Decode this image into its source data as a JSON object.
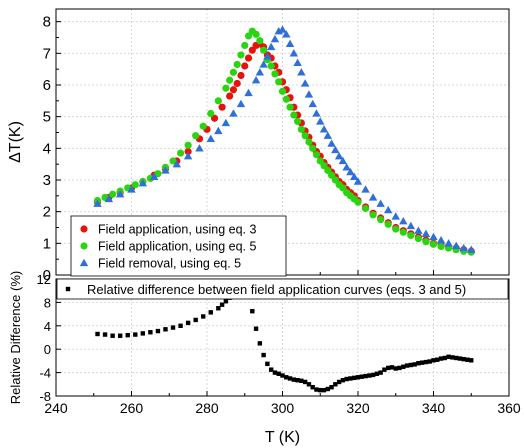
{
  "chart_data": [
    {
      "type": "scatter",
      "title": "",
      "xlabel": "T (K)",
      "ylabel": "ΔT(K)",
      "xlim": [
        240,
        360
      ],
      "ylim": [
        0,
        8.4
      ],
      "yticks": [
        "0",
        "1",
        "2",
        "3",
        "4",
        "5",
        "6",
        "7",
        "8"
      ],
      "grid": true,
      "legend_position": "bottom-left",
      "legend": [
        {
          "label": "Field application, using eq. 3",
          "color": "#e8120d",
          "marker": "circle"
        },
        {
          "label": "Field application, using eq. 5",
          "color": "#2bd411",
          "marker": "circle"
        },
        {
          "label": "Field removal, using eq. 5",
          "color": "#2e6fd8",
          "marker": "triangle"
        }
      ],
      "series": [
        {
          "name": "Field application, using eq. 3",
          "color": "#e8120d",
          "marker": "circle",
          "x": [
            251,
            254,
            257,
            260,
            263,
            266,
            269,
            272,
            275,
            278,
            280,
            282,
            284,
            286,
            287,
            288,
            289,
            290,
            291,
            292,
            293,
            294,
            295,
            296,
            297,
            298,
            299,
            300,
            301,
            302,
            303,
            304,
            305,
            306,
            307,
            308,
            309,
            310,
            311,
            312,
            313,
            314,
            315,
            316,
            317,
            318,
            319,
            320,
            322,
            324,
            326,
            328,
            330,
            332,
            334,
            336,
            338,
            340,
            342,
            344,
            346,
            348,
            350
          ],
          "y": [
            2.3,
            2.45,
            2.6,
            2.75,
            2.95,
            3.15,
            3.35,
            3.6,
            3.9,
            4.3,
            4.6,
            4.95,
            5.3,
            5.65,
            5.85,
            6.05,
            6.3,
            6.6,
            6.85,
            7.1,
            7.25,
            7.3,
            7.2,
            6.95,
            6.85,
            6.6,
            6.4,
            6.1,
            5.85,
            5.6,
            5.3,
            5.05,
            4.8,
            4.55,
            4.35,
            4.1,
            3.9,
            3.75,
            3.55,
            3.4,
            3.25,
            3.1,
            2.95,
            2.85,
            2.7,
            2.6,
            2.5,
            2.35,
            2.15,
            1.95,
            1.8,
            1.65,
            1.5,
            1.4,
            1.3,
            1.2,
            1.1,
            1.0,
            0.95,
            0.9,
            0.85,
            0.8,
            0.75
          ]
        },
        {
          "name": "Field application, using eq. 5",
          "color": "#2bd411",
          "marker": "circle",
          "x": [
            251,
            253,
            255,
            257,
            259,
            261,
            263,
            265,
            267,
            269,
            271,
            273,
            275,
            277,
            279,
            281,
            283,
            285,
            286,
            287,
            288,
            289,
            290,
            291,
            292,
            293,
            294,
            295,
            296,
            297,
            298,
            299,
            300,
            301,
            302,
            303,
            304,
            305,
            306,
            307,
            308,
            309,
            310,
            311,
            312,
            313,
            314,
            315,
            316,
            317,
            318,
            319,
            320,
            322,
            324,
            326,
            328,
            330,
            332,
            334,
            336,
            338,
            340,
            342,
            344,
            346,
            348,
            350
          ],
          "y": [
            2.35,
            2.45,
            2.55,
            2.65,
            2.75,
            2.85,
            2.95,
            3.05,
            3.2,
            3.4,
            3.6,
            3.85,
            4.1,
            4.4,
            4.7,
            5.1,
            5.5,
            5.9,
            6.15,
            6.4,
            6.65,
            6.95,
            7.25,
            7.55,
            7.7,
            7.6,
            7.4,
            7.1,
            6.8,
            6.6,
            6.35,
            6.1,
            5.8,
            5.55,
            5.3,
            5.05,
            4.85,
            4.6,
            4.4,
            4.2,
            4.0,
            3.8,
            3.6,
            3.45,
            3.3,
            3.15,
            3.0,
            2.85,
            2.75,
            2.6,
            2.5,
            2.4,
            2.3,
            2.1,
            1.9,
            1.75,
            1.6,
            1.45,
            1.35,
            1.25,
            1.15,
            1.05,
            0.97,
            0.9,
            0.85,
            0.8,
            0.75,
            0.72
          ]
        },
        {
          "name": "Field removal, using eq. 5",
          "color": "#2e6fd8",
          "marker": "triangle",
          "x": [
            251,
            254,
            257,
            260,
            263,
            266,
            269,
            272,
            275,
            278,
            281,
            283,
            285,
            287,
            289,
            291,
            293,
            294,
            295,
            296,
            297,
            298,
            299,
            300,
            301,
            302,
            303,
            304,
            305,
            306,
            307,
            308,
            309,
            310,
            311,
            312,
            313,
            314,
            315,
            316,
            317,
            318,
            319,
            320,
            322,
            324,
            326,
            328,
            330,
            332,
            334,
            336,
            338,
            340,
            342,
            344,
            346,
            348,
            350
          ],
          "y": [
            2.25,
            2.4,
            2.55,
            2.7,
            2.9,
            3.1,
            3.3,
            3.5,
            3.75,
            4.0,
            4.3,
            4.55,
            4.8,
            5.1,
            5.4,
            5.75,
            6.15,
            6.4,
            6.65,
            6.9,
            7.2,
            7.45,
            7.7,
            7.75,
            7.6,
            7.3,
            7.0,
            6.7,
            6.4,
            6.05,
            5.7,
            5.4,
            5.1,
            4.85,
            4.6,
            4.4,
            4.15,
            3.95,
            3.75,
            3.6,
            3.4,
            3.25,
            3.1,
            2.95,
            2.7,
            2.45,
            2.25,
            2.05,
            1.85,
            1.7,
            1.55,
            1.4,
            1.3,
            1.2,
            1.1,
            1.0,
            0.92,
            0.85,
            0.8
          ]
        }
      ]
    },
    {
      "type": "scatter",
      "title": "",
      "xlabel": "T (K)",
      "ylabel": "Relative Difference (%)",
      "xlim": [
        240,
        360
      ],
      "ylim": [
        -8,
        12
      ],
      "xticks": [
        "240",
        "260",
        "280",
        "300",
        "320",
        "340",
        "360"
      ],
      "yticks": [
        "-8",
        "-4",
        "0",
        "4",
        "8",
        "12"
      ],
      "grid": true,
      "legend_position": "top",
      "legend": [
        {
          "label": "Relative difference between field application curves (eqs. 3 and 5)",
          "color": "#000000",
          "marker": "square"
        }
      ],
      "series": [
        {
          "name": "Relative difference between field application curves (eqs. 3 and 5)",
          "color": "#000000",
          "marker": "square",
          "x": [
            251,
            253,
            255,
            257,
            259,
            261,
            263,
            265,
            267,
            269,
            271,
            273,
            275,
            277,
            279,
            281,
            283,
            284,
            285,
            286,
            287,
            288,
            289,
            290,
            291,
            292,
            293,
            294,
            295,
            296,
            297,
            298,
            299,
            300,
            301,
            302,
            303,
            304,
            305,
            306,
            307,
            308,
            309,
            310,
            311,
            312,
            313,
            314,
            315,
            316,
            317,
            318,
            319,
            320,
            321,
            322,
            323,
            324,
            325,
            326,
            327,
            328,
            329,
            330,
            331,
            332,
            333,
            334,
            335,
            336,
            337,
            338,
            339,
            340,
            341,
            342,
            343,
            344,
            345,
            346,
            347,
            348,
            349,
            350
          ],
          "y": [
            2.6,
            2.5,
            2.3,
            2.3,
            2.4,
            2.5,
            2.7,
            2.9,
            3.1,
            3.4,
            3.7,
            4.0,
            4.5,
            5.0,
            5.6,
            6.3,
            7.0,
            7.6,
            8.2,
            8.8,
            9.6,
            10.3,
            10.5,
            10.2,
            9.0,
            6.5,
            3.5,
            1.0,
            -1.0,
            -2.5,
            -3.5,
            -4.0,
            -4.2,
            -4.5,
            -4.8,
            -5.0,
            -5.2,
            -5.3,
            -5.4,
            -5.6,
            -6.0,
            -6.5,
            -6.9,
            -7.0,
            -7.0,
            -6.8,
            -6.5,
            -6.0,
            -5.6,
            -5.3,
            -5.1,
            -5.0,
            -4.9,
            -4.8,
            -4.7,
            -4.6,
            -4.5,
            -4.4,
            -4.2,
            -4.0,
            -3.5,
            -3.2,
            -3.1,
            -3.3,
            -3.2,
            -3.0,
            -2.8,
            -2.7,
            -2.6,
            -2.4,
            -2.3,
            -2.2,
            -2.1,
            -1.9,
            -1.8,
            -1.6,
            -1.5,
            -1.3,
            -1.4,
            -1.5,
            -1.6,
            -1.7,
            -1.8,
            -1.9
          ]
        }
      ]
    }
  ]
}
